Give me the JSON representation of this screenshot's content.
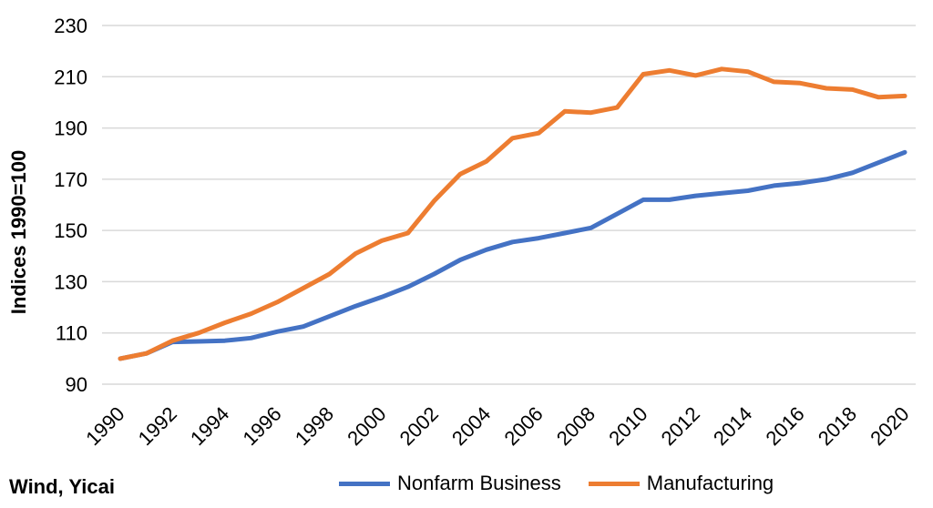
{
  "source_note": "Wind, Yicai",
  "chart_data": {
    "type": "line",
    "title": "",
    "xlabel": "",
    "ylabel": "Indices 1990=100",
    "ylim": [
      90,
      230
    ],
    "yticks": [
      90,
      110,
      130,
      150,
      170,
      190,
      210,
      230
    ],
    "x": [
      1990,
      1991,
      1992,
      1993,
      1994,
      1995,
      1996,
      1997,
      1998,
      1999,
      2000,
      2001,
      2002,
      2003,
      2004,
      2005,
      2006,
      2007,
      2008,
      2009,
      2010,
      2011,
      2012,
      2013,
      2014,
      2015,
      2016,
      2017,
      2018,
      2019,
      2020
    ],
    "xticks": [
      "1990",
      "1992",
      "1994",
      "1996",
      "1998",
      "2000",
      "2002",
      "2004",
      "2006",
      "2008",
      "2010",
      "2012",
      "2014",
      "2016",
      "2018",
      "2020"
    ],
    "grid": true,
    "legend_position": "bottom",
    "series": [
      {
        "name": "Nonfarm Business",
        "color": "#4472C4",
        "values": [
          100,
          102,
          106.5,
          106.7,
          107,
          108,
          110.5,
          112.5,
          116.5,
          120.5,
          124,
          128,
          133,
          138.5,
          142.5,
          145.5,
          147,
          149,
          151,
          156.5,
          162,
          162,
          163.5,
          164.5,
          165.5,
          167.5,
          168.5,
          170,
          172.5,
          176.5,
          180.5
        ]
      },
      {
        "name": "Manufacturing",
        "color": "#ED7D31",
        "values": [
          100,
          102,
          107,
          110,
          114,
          117.5,
          122,
          127.5,
          133,
          141,
          146,
          149,
          161.5,
          172,
          177,
          186,
          188,
          196.5,
          196,
          198,
          211,
          212.5,
          210.5,
          213,
          212,
          208,
          207.5,
          205.5,
          205,
          202,
          202.5
        ]
      }
    ]
  }
}
